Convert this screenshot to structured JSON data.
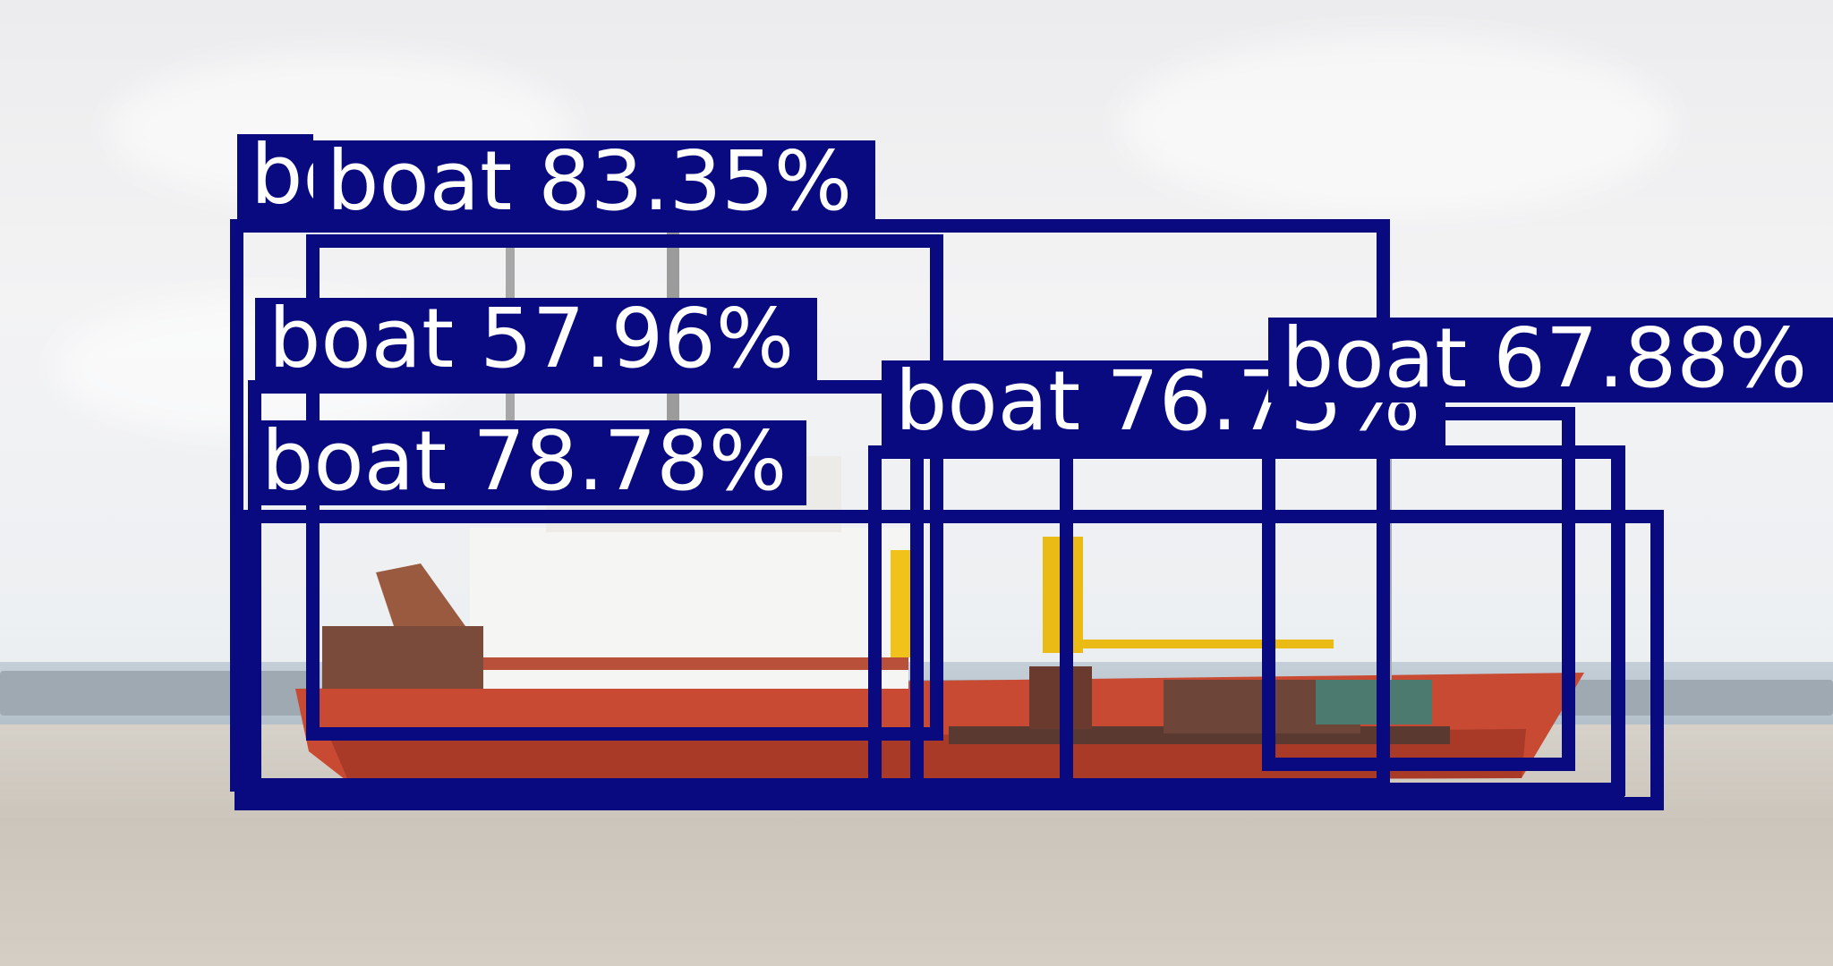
{
  "image": {
    "description_class": "object-detection-output",
    "box_color": "#0a0a80",
    "label_text_color": "#ffffff"
  },
  "detections": [
    {
      "class": "boat",
      "confidence": "boat 83.35%"
    },
    {
      "class": "boat",
      "confidence": "boat 57.96%"
    },
    {
      "class": "boat",
      "confidence": "boat 78.78%"
    },
    {
      "class": "boat",
      "confidence": "boat 76.75%"
    },
    {
      "class": "boat",
      "confidence": "boat 67.88%"
    },
    {
      "class": "boat",
      "confidence": "boat"
    }
  ]
}
